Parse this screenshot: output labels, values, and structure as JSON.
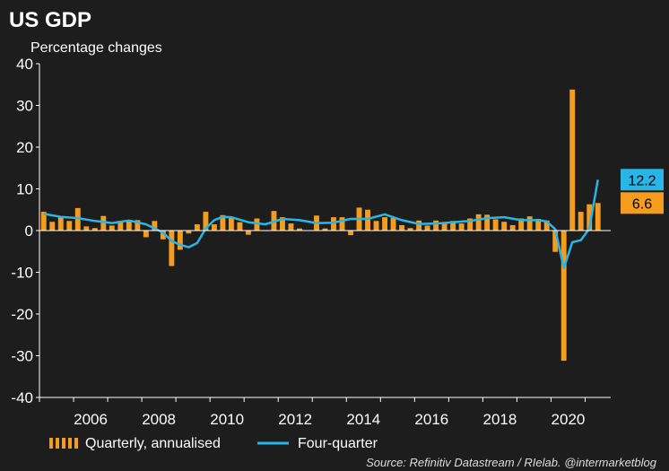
{
  "chart_data": {
    "type": "bar+line",
    "title": "US GDP",
    "subtitle": "Percentage changes",
    "ylim": [
      -40,
      40
    ],
    "yticks": [
      40,
      30,
      20,
      10,
      0,
      -10,
      -20,
      -30,
      -40
    ],
    "xlim": [
      2005.0,
      2021.75
    ],
    "xticks": [
      2006,
      2008,
      2010,
      2012,
      2014,
      2016,
      2018,
      2020
    ],
    "grid": false,
    "legend": "bottom",
    "series": [
      {
        "name": "Quarterly, annualised",
        "kind": "bar",
        "color": "#f39c1e",
        "x": [
          2005.0,
          2005.25,
          2005.5,
          2005.75,
          2006.0,
          2006.25,
          2006.5,
          2006.75,
          2007.0,
          2007.25,
          2007.5,
          2007.75,
          2008.0,
          2008.25,
          2008.5,
          2008.75,
          2009.0,
          2009.25,
          2009.5,
          2009.75,
          2010.0,
          2010.25,
          2010.5,
          2010.75,
          2011.0,
          2011.25,
          2011.5,
          2011.75,
          2012.0,
          2012.25,
          2012.5,
          2012.75,
          2013.0,
          2013.25,
          2013.5,
          2013.75,
          2014.0,
          2014.25,
          2014.5,
          2014.75,
          2015.0,
          2015.25,
          2015.5,
          2015.75,
          2016.0,
          2016.25,
          2016.5,
          2016.75,
          2017.0,
          2017.25,
          2017.5,
          2017.75,
          2018.0,
          2018.25,
          2018.5,
          2018.75,
          2019.0,
          2019.25,
          2019.5,
          2019.75,
          2020.0,
          2020.25,
          2020.5,
          2020.75,
          2021.0,
          2021.25
        ],
        "values": [
          4.5,
          2.1,
          3.2,
          2.3,
          5.4,
          1.0,
          0.6,
          3.5,
          1.2,
          2.3,
          2.2,
          2.5,
          -1.6,
          2.3,
          -2.1,
          -8.5,
          -4.6,
          -0.7,
          1.5,
          4.5,
          1.5,
          3.7,
          3.0,
          2.0,
          -1.0,
          2.9,
          -0.1,
          4.7,
          3.2,
          1.7,
          0.5,
          0.1,
          3.6,
          0.5,
          3.2,
          3.2,
          -1.1,
          5.5,
          5.0,
          2.3,
          3.2,
          3.0,
          1.3,
          0.6,
          2.4,
          1.2,
          2.4,
          2.0,
          2.3,
          1.7,
          2.9,
          3.9,
          3.8,
          2.7,
          2.1,
          1.3,
          2.9,
          3.4,
          2.8,
          2.4,
          -5.1,
          -31.2,
          33.8,
          4.5,
          6.3,
          6.6
        ]
      },
      {
        "name": "Four-quarter",
        "kind": "line",
        "color": "#29b6e6",
        "x": [
          2005.0,
          2005.5,
          2006.0,
          2006.5,
          2007.0,
          2007.5,
          2008.0,
          2008.5,
          2008.75,
          2009.0,
          2009.25,
          2009.5,
          2009.75,
          2010.0,
          2010.25,
          2010.5,
          2011.0,
          2011.5,
          2012.0,
          2012.5,
          2013.0,
          2013.5,
          2014.0,
          2014.5,
          2015.0,
          2015.5,
          2016.0,
          2016.5,
          2017.0,
          2017.5,
          2018.0,
          2018.5,
          2019.0,
          2019.5,
          2019.75,
          2020.0,
          2020.25,
          2020.5,
          2020.75,
          2021.0,
          2021.25
        ],
        "values": [
          4.0,
          3.3,
          3.0,
          2.3,
          1.8,
          2.4,
          1.5,
          -0.5,
          -2.5,
          -3.4,
          -4.0,
          -3.0,
          0.5,
          2.5,
          3.3,
          3.2,
          2.0,
          1.5,
          2.8,
          2.5,
          1.8,
          1.9,
          2.8,
          2.8,
          3.9,
          2.5,
          1.6,
          1.7,
          2.0,
          2.3,
          3.0,
          3.2,
          2.5,
          2.5,
          2.2,
          0.3,
          -9.0,
          -2.8,
          -2.3,
          0.5,
          12.2
        ]
      }
    ],
    "end_labels": [
      {
        "series": "Four-quarter",
        "text": "12.2"
      },
      {
        "series": "Quarterly, annualised",
        "text": "6.6"
      }
    ],
    "source": "Source: Refinitiv Datastream / RIelab. @intermarketblog"
  }
}
